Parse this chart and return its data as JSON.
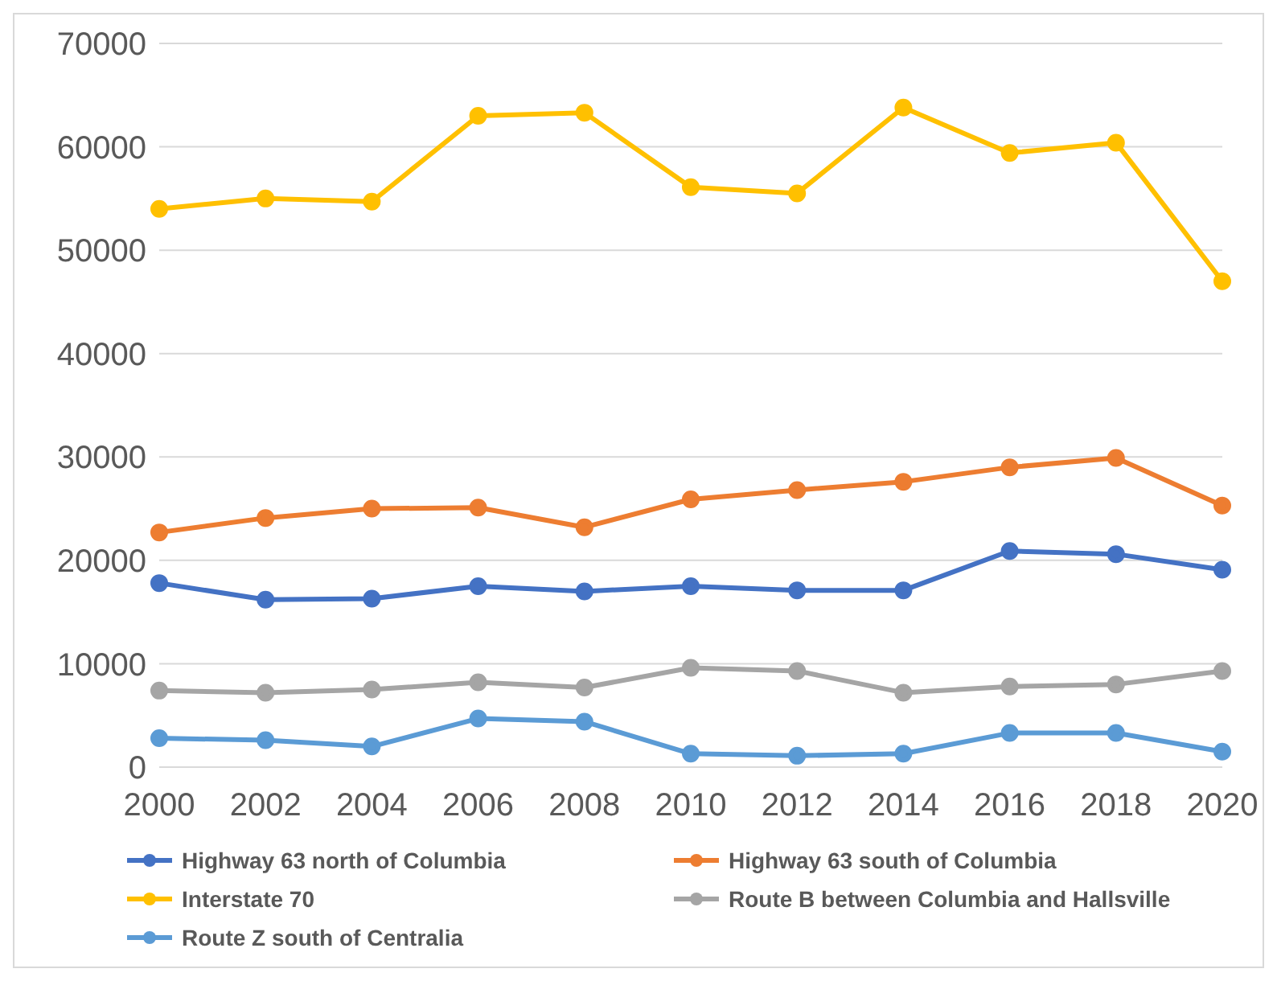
{
  "chart_data": {
    "type": "line",
    "categories": [
      "2000",
      "2002",
      "2004",
      "2006",
      "2008",
      "2010",
      "2012",
      "2014",
      "2016",
      "2018",
      "2020"
    ],
    "series": [
      {
        "name": "Highway 63 north of Columbia",
        "color": "#4472c4",
        "values": [
          17800,
          16200,
          16300,
          17500,
          17000,
          17500,
          17100,
          17100,
          20900,
          20600,
          19100
        ]
      },
      {
        "name": "Highway 63 south of Columbia",
        "color": "#ed7d31",
        "values": [
          22700,
          24100,
          25000,
          25100,
          23200,
          25900,
          26800,
          27600,
          29000,
          29900,
          25300
        ]
      },
      {
        "name": "Route B between Columbia and Hallsville",
        "color": "#a5a5a5",
        "values": [
          7400,
          7200,
          7500,
          8200,
          7700,
          9600,
          9300,
          7200,
          7800,
          8000,
          9300
        ]
      },
      {
        "name": "Interstate 70",
        "color": "#ffc000",
        "values": [
          54000,
          55000,
          54700,
          63000,
          63300,
          56100,
          55500,
          63800,
          59400,
          60400,
          47000
        ]
      },
      {
        "name": "Route Z south of Centralia",
        "color": "#5b9bd5",
        "values": [
          2800,
          2600,
          2000,
          4700,
          4400,
          1300,
          1100,
          1300,
          3300,
          3300,
          1500
        ]
      }
    ],
    "ylim": [
      0,
      70000
    ],
    "yticks": [
      0,
      10000,
      20000,
      30000,
      40000,
      50000,
      60000,
      70000
    ],
    "grid": "y",
    "legend": "bottom",
    "marker": "circle",
    "line_style": "solid"
  }
}
